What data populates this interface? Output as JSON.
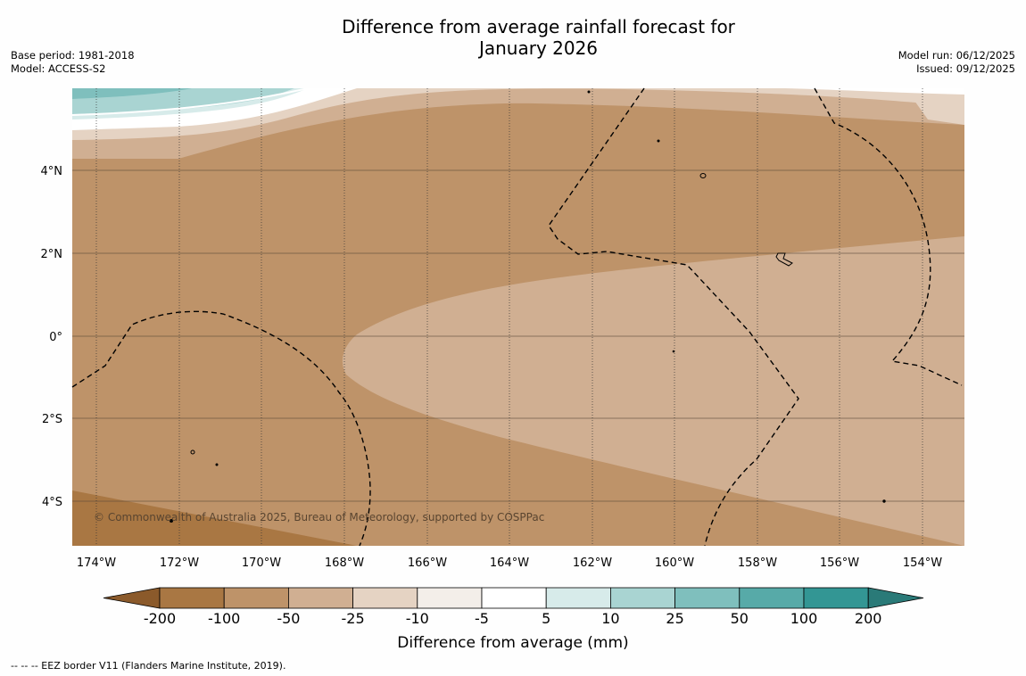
{
  "title": {
    "line1": "Difference from average rainfall forecast for",
    "line2": "January 2026"
  },
  "meta_left": {
    "base_period": "Base period: 1981-2018",
    "model": "Model: ACCESS-S2"
  },
  "meta_right": {
    "model_run": "Model run: 06/12/2025",
    "issued": "Issued: 09/12/2025"
  },
  "map": {
    "lat_labels": [
      "4°N",
      "2°N",
      "0°",
      "2°S",
      "4°S"
    ],
    "lon_labels": [
      "174°W",
      "172°W",
      "170°W",
      "168°W",
      "166°W",
      "164°W",
      "162°W",
      "160°W",
      "158°W",
      "156°W",
      "154°W"
    ],
    "copyright": "© Commonwealth of Australia 2025, Bureau of Meteorology, supported by COSPPac",
    "region_colors": {
      "brown_dark": "#a97743",
      "brown": "#be9369",
      "tan": "#d0af92",
      "light_tan": "#e5d3c3",
      "teal_light": "#a9d4d2",
      "teal": "#7fbfbd"
    }
  },
  "colorbar": {
    "ticks": [
      "-200",
      "-100",
      "-50",
      "-25",
      "-10",
      "-5",
      "5",
      "10",
      "25",
      "50",
      "100",
      "200"
    ],
    "colors": [
      "#8b5a2b",
      "#a97743",
      "#be9369",
      "#d0af92",
      "#e5d3c3",
      "#f3eee9",
      "#ffffff",
      "#d7ebea",
      "#a9d4d2",
      "#7fbfbd",
      "#57aaa8",
      "#339694",
      "#2a7a78"
    ],
    "label": "Difference from average (mm)"
  },
  "footnote": "--  --  -- EEZ border V11 (Flanders Marine Institute, 2019)."
}
